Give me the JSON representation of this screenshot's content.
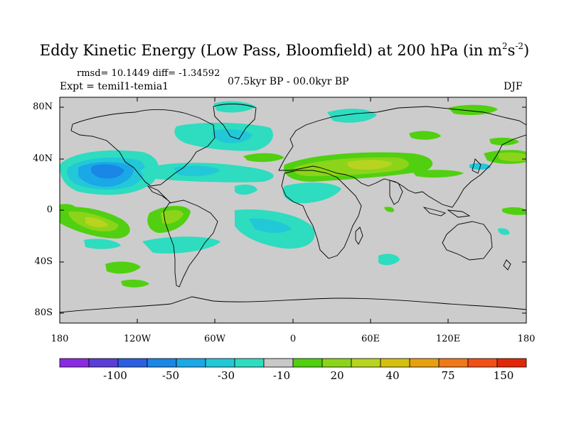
{
  "title": {
    "main": "Eddy Kinetic Energy (Low Pass, Bloomfield) at 200 hPa (in m",
    "exp1": "2",
    "mid": "s",
    "exp2": "-2",
    "end": ")"
  },
  "stats": "rmsd= 10.1449 diff= -1.34592",
  "experiment": "Expt = temiI1-temia1",
  "period": "07.5kyr BP - 00.0kyr BP",
  "season": "DJF",
  "lat_labels": [
    "80N",
    "40N",
    "0",
    "40S",
    "80S"
  ],
  "lon_labels": [
    "180",
    "120W",
    "60W",
    "0",
    "60E",
    "120E",
    "180"
  ],
  "colorbar": {
    "colors": [
      "#8a2be2",
      "#5a3ed6",
      "#2a60e0",
      "#1a86e6",
      "#1aa8e6",
      "#22c8d8",
      "#2edcc0",
      "#c8c8c8",
      "#50d010",
      "#8cd41a",
      "#b8d420",
      "#d4c010",
      "#e8a010",
      "#f07818",
      "#f05018",
      "#e02808"
    ],
    "labels": [
      "-100",
      "-50",
      "-30",
      "-10",
      "20",
      "40",
      "75",
      "150"
    ]
  },
  "map": {
    "background": "#cccccc",
    "coastline_color": "#000000"
  }
}
